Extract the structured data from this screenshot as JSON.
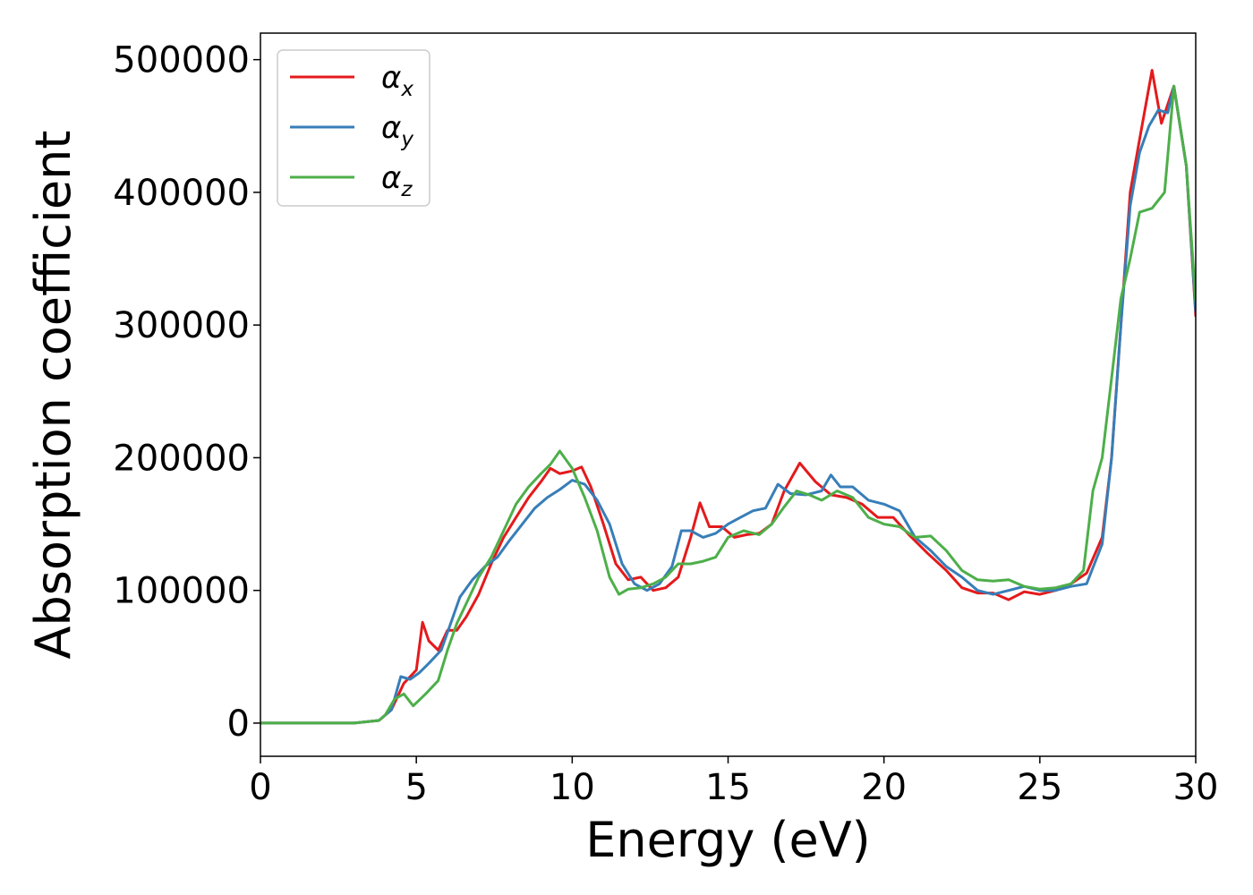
{
  "chart_data": {
    "type": "line",
    "title": "",
    "xlabel": "Energy (eV)",
    "ylabel": "Absorption coefficient",
    "xlim": [
      0,
      30
    ],
    "ylim": [
      -25000,
      520000
    ],
    "xticks": [
      0,
      5,
      10,
      15,
      20,
      25,
      30
    ],
    "xtick_labels": [
      "0",
      "5",
      "10",
      "15",
      "20",
      "25",
      "30"
    ],
    "yticks": [
      0,
      100000,
      200000,
      300000,
      400000,
      500000
    ],
    "ytick_labels": [
      "0",
      "100000",
      "200000",
      "300000",
      "400000",
      "500000"
    ],
    "grid": false,
    "legend_position": "upper-left",
    "series": [
      {
        "name": "α_x",
        "legend_symbol": "α",
        "legend_subscript": "x",
        "color": "#e41a1c",
        "x": [
          0,
          3.0,
          3.8,
          4.2,
          4.6,
          5.0,
          5.2,
          5.4,
          5.7,
          6.0,
          6.3,
          6.6,
          7.0,
          7.4,
          7.8,
          8.2,
          8.6,
          9.0,
          9.3,
          9.6,
          10.0,
          10.3,
          10.6,
          11.0,
          11.4,
          11.8,
          12.2,
          12.6,
          13.0,
          13.4,
          13.8,
          14.1,
          14.4,
          14.8,
          15.2,
          15.6,
          16.0,
          16.4,
          16.8,
          17.3,
          17.8,
          18.3,
          18.8,
          19.3,
          19.8,
          20.3,
          20.8,
          21.4,
          22.0,
          22.5,
          23.0,
          23.5,
          24.0,
          24.5,
          25.0,
          25.5,
          26.0,
          26.5,
          27.0,
          27.3,
          27.6,
          27.9,
          28.2,
          28.6,
          28.9,
          29.3,
          29.7,
          30.0
        ],
        "y": [
          0,
          0,
          2000,
          10000,
          30000,
          40000,
          76000,
          62000,
          55000,
          70000,
          70000,
          80000,
          97000,
          120000,
          140000,
          155000,
          170000,
          182000,
          192000,
          188000,
          190000,
          193000,
          178000,
          150000,
          120000,
          108000,
          110000,
          100000,
          102000,
          110000,
          140000,
          166000,
          148000,
          148000,
          140000,
          142000,
          143000,
          150000,
          175000,
          196000,
          182000,
          172000,
          170000,
          165000,
          155000,
          155000,
          142000,
          128000,
          115000,
          102000,
          98000,
          98000,
          93000,
          99000,
          97000,
          100000,
          105000,
          113000,
          140000,
          200000,
          300000,
          400000,
          440000,
          492000,
          452000,
          480000,
          420000,
          307000
        ]
      },
      {
        "name": "α_y",
        "legend_symbol": "α",
        "legend_subscript": "y",
        "color": "#377eb8",
        "x": [
          0,
          3.0,
          3.8,
          4.2,
          4.5,
          4.8,
          5.1,
          5.4,
          5.8,
          6.1,
          6.4,
          6.8,
          7.2,
          7.6,
          8.0,
          8.4,
          8.8,
          9.2,
          9.6,
          10.0,
          10.4,
          10.8,
          11.2,
          11.6,
          12.0,
          12.4,
          12.8,
          13.2,
          13.5,
          13.8,
          14.2,
          14.6,
          15.0,
          15.4,
          15.8,
          16.2,
          16.6,
          17.0,
          17.5,
          18.0,
          18.3,
          18.6,
          19.0,
          19.5,
          20.0,
          20.5,
          21.0,
          21.5,
          22.0,
          22.5,
          23.0,
          23.5,
          24.0,
          24.5,
          25.0,
          25.5,
          26.0,
          26.5,
          27.0,
          27.3,
          27.6,
          27.9,
          28.2,
          28.5,
          28.8,
          29.1,
          29.3,
          29.7,
          30.0
        ],
        "y": [
          0,
          0,
          2000,
          10000,
          35000,
          33000,
          38000,
          45000,
          55000,
          75000,
          95000,
          108000,
          118000,
          125000,
          138000,
          150000,
          162000,
          170000,
          176000,
          183000,
          180000,
          168000,
          150000,
          120000,
          105000,
          100000,
          105000,
          118000,
          145000,
          145000,
          140000,
          143000,
          150000,
          155000,
          160000,
          162000,
          180000,
          173000,
          172000,
          175000,
          187000,
          178000,
          178000,
          168000,
          165000,
          160000,
          140000,
          130000,
          118000,
          110000,
          100000,
          97000,
          100000,
          103000,
          100000,
          100000,
          103000,
          105000,
          135000,
          200000,
          300000,
          390000,
          430000,
          450000,
          462000,
          460000,
          480000,
          420000,
          310000
        ]
      },
      {
        "name": "α_z",
        "legend_symbol": "α",
        "legend_subscript": "z",
        "color": "#4daf4a",
        "x": [
          0,
          3.0,
          3.8,
          4.0,
          4.3,
          4.6,
          4.9,
          5.3,
          5.7,
          6.0,
          6.3,
          6.6,
          7.0,
          7.4,
          7.8,
          8.2,
          8.6,
          9.0,
          9.3,
          9.6,
          10.0,
          10.4,
          10.8,
          11.2,
          11.5,
          11.8,
          12.2,
          12.6,
          13.0,
          13.4,
          13.8,
          14.2,
          14.6,
          15.0,
          15.5,
          16.0,
          16.4,
          16.8,
          17.2,
          17.6,
          18.0,
          18.5,
          19.0,
          19.5,
          20.0,
          20.5,
          21.0,
          21.5,
          22.0,
          22.5,
          23.0,
          23.5,
          24.0,
          24.5,
          25.0,
          25.5,
          26.0,
          26.4,
          26.7,
          27.0,
          27.3,
          27.6,
          27.9,
          28.2,
          28.6,
          29.0,
          29.3,
          29.7,
          30.0
        ],
        "y": [
          0,
          0,
          2000,
          6000,
          18000,
          22000,
          13000,
          22000,
          32000,
          55000,
          75000,
          90000,
          110000,
          125000,
          145000,
          165000,
          178000,
          188000,
          195000,
          205000,
          192000,
          170000,
          145000,
          110000,
          97000,
          101000,
          102000,
          105000,
          110000,
          120000,
          120000,
          122000,
          125000,
          140000,
          145000,
          142000,
          150000,
          163000,
          175000,
          172000,
          168000,
          175000,
          170000,
          155000,
          150000,
          148000,
          140000,
          141000,
          130000,
          115000,
          108000,
          107000,
          108000,
          103000,
          101000,
          102000,
          105000,
          115000,
          175000,
          200000,
          260000,
          320000,
          350000,
          385000,
          388000,
          400000,
          480000,
          420000,
          318000
        ]
      }
    ]
  }
}
